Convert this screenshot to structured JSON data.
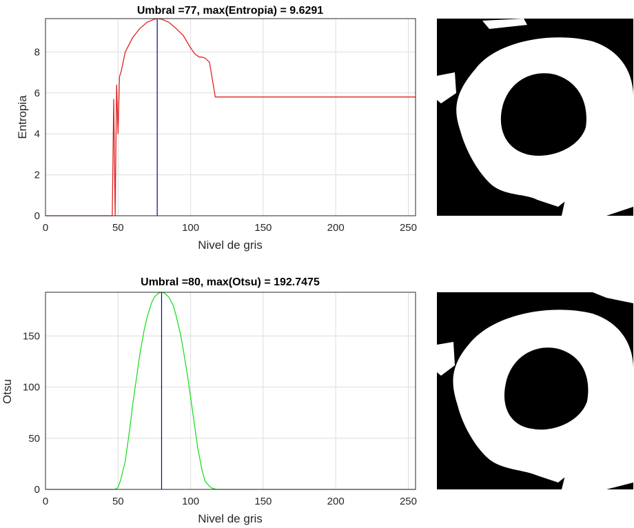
{
  "chart_data": [
    {
      "type": "line",
      "title": "Umbral =77, max(Entropia) = 9.6291",
      "xlabel": "Nivel de gris",
      "ylabel": "Entropia",
      "xlim": [
        0,
        255
      ],
      "ylim": [
        0,
        9.63
      ],
      "xticks": [
        0,
        50,
        100,
        150,
        200,
        250
      ],
      "yticks": [
        0,
        2,
        4,
        6,
        8
      ],
      "grid": true,
      "threshold": 77,
      "series": [
        {
          "color": "#e02020",
          "x": [
            0,
            46,
            47,
            48,
            49,
            50,
            51,
            52,
            55,
            60,
            65,
            70,
            75,
            77,
            80,
            85,
            90,
            95,
            100,
            103,
            106,
            108,
            110,
            113,
            117,
            118,
            150,
            200,
            255
          ],
          "y": [
            0,
            0,
            5.7,
            0,
            6.4,
            4.0,
            6.8,
            7.0,
            8.0,
            8.7,
            9.15,
            9.45,
            9.6,
            9.63,
            9.6,
            9.45,
            9.15,
            8.8,
            8.2,
            7.9,
            7.75,
            7.75,
            7.7,
            7.5,
            5.8,
            5.8,
            5.8,
            5.8,
            5.8
          ]
        }
      ],
      "vline_color": "#000099"
    },
    {
      "type": "line",
      "title": "Umbral =80, max(Otsu) = 192.7475",
      "xlabel": "Nivel de gris",
      "ylabel": "Otsu",
      "xlim": [
        0,
        255
      ],
      "ylim": [
        0,
        192.75
      ],
      "xticks": [
        0,
        50,
        100,
        150,
        200,
        250
      ],
      "yticks": [
        0,
        50,
        100,
        150
      ],
      "grid": true,
      "threshold": 80,
      "series": [
        {
          "color": "#22dd22",
          "x": [
            0,
            48,
            50,
            52,
            55,
            58,
            60,
            63,
            65,
            68,
            70,
            73,
            75,
            78,
            80,
            82,
            85,
            88,
            90,
            93,
            95,
            98,
            100,
            103,
            105,
            108,
            110,
            113,
            115,
            118,
            255
          ],
          "y": [
            0,
            0,
            2,
            10,
            28,
            58,
            82,
            112,
            132,
            156,
            168,
            182,
            188,
            192,
            192.75,
            192,
            188,
            180,
            170,
            152,
            136,
            110,
            90,
            60,
            40,
            18,
            8,
            3,
            1,
            0,
            0
          ]
        }
      ],
      "vline_color": "#000099"
    }
  ]
}
